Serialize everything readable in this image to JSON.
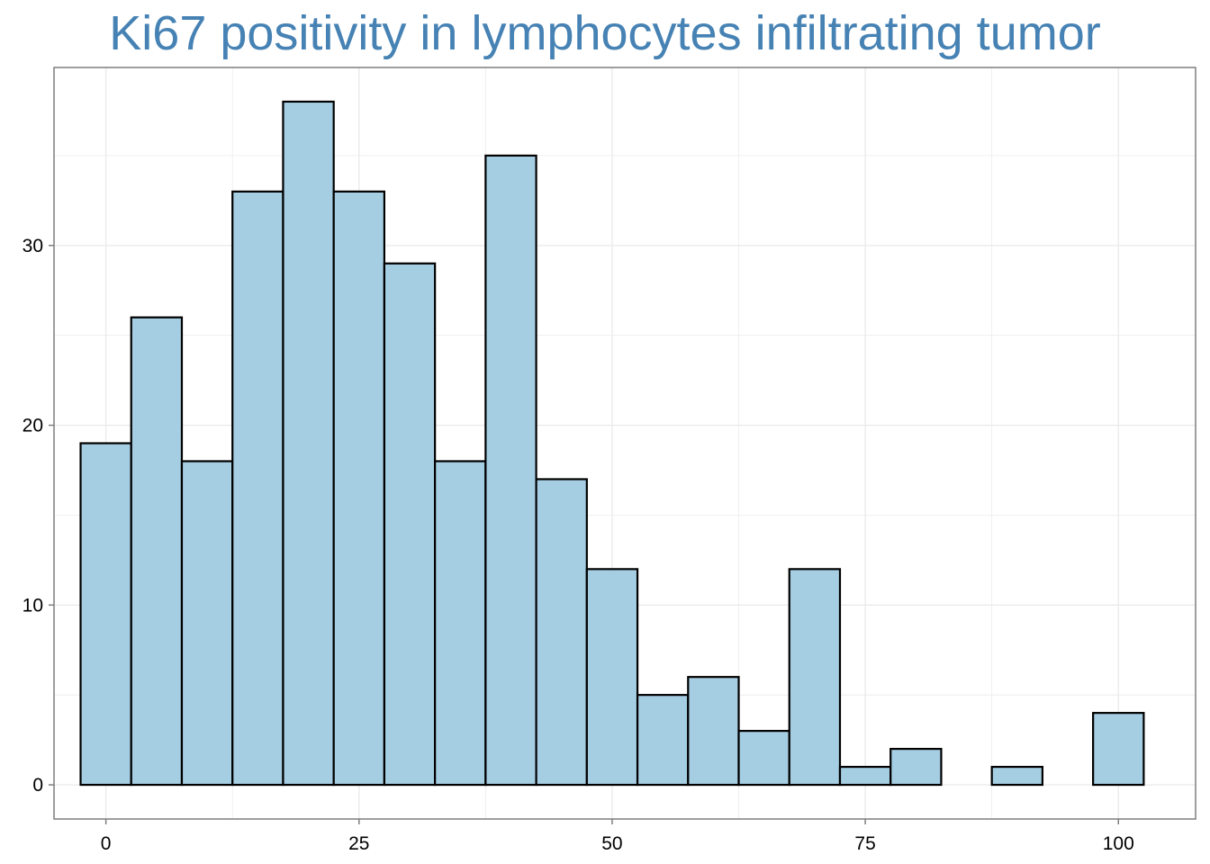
{
  "chart_data": {
    "type": "bar",
    "title": "Ki67 positivity in lymphocytes infiltrating tumor",
    "xlabel": "",
    "ylabel": "",
    "bin_width": 5,
    "bins": [
      {
        "center": 0,
        "count": 19
      },
      {
        "center": 5,
        "count": 26
      },
      {
        "center": 10,
        "count": 18
      },
      {
        "center": 15,
        "count": 33
      },
      {
        "center": 20,
        "count": 38
      },
      {
        "center": 25,
        "count": 33
      },
      {
        "center": 30,
        "count": 29
      },
      {
        "center": 35,
        "count": 18
      },
      {
        "center": 40,
        "count": 35
      },
      {
        "center": 45,
        "count": 17
      },
      {
        "center": 50,
        "count": 12
      },
      {
        "center": 55,
        "count": 5
      },
      {
        "center": 60,
        "count": 6
      },
      {
        "center": 65,
        "count": 3
      },
      {
        "center": 70,
        "count": 12
      },
      {
        "center": 75,
        "count": 1
      },
      {
        "center": 80,
        "count": 2
      },
      {
        "center": 85,
        "count": 0
      },
      {
        "center": 90,
        "count": 1
      },
      {
        "center": 95,
        "count": 0
      },
      {
        "center": 100,
        "count": 4
      }
    ],
    "x_ticks": [
      0,
      25,
      50,
      75,
      100
    ],
    "y_ticks": [
      0,
      10,
      20,
      30
    ],
    "xlim": [
      -5.125,
      107.625
    ],
    "ylim": [
      -1.9,
      39.9
    ],
    "grid": true,
    "colors": {
      "title": "#4682b4",
      "bar_fill": "#a6cee3",
      "bar_stroke": "#000000",
      "grid": "#ebebeb",
      "panel_border": "#7f7f7f"
    }
  }
}
